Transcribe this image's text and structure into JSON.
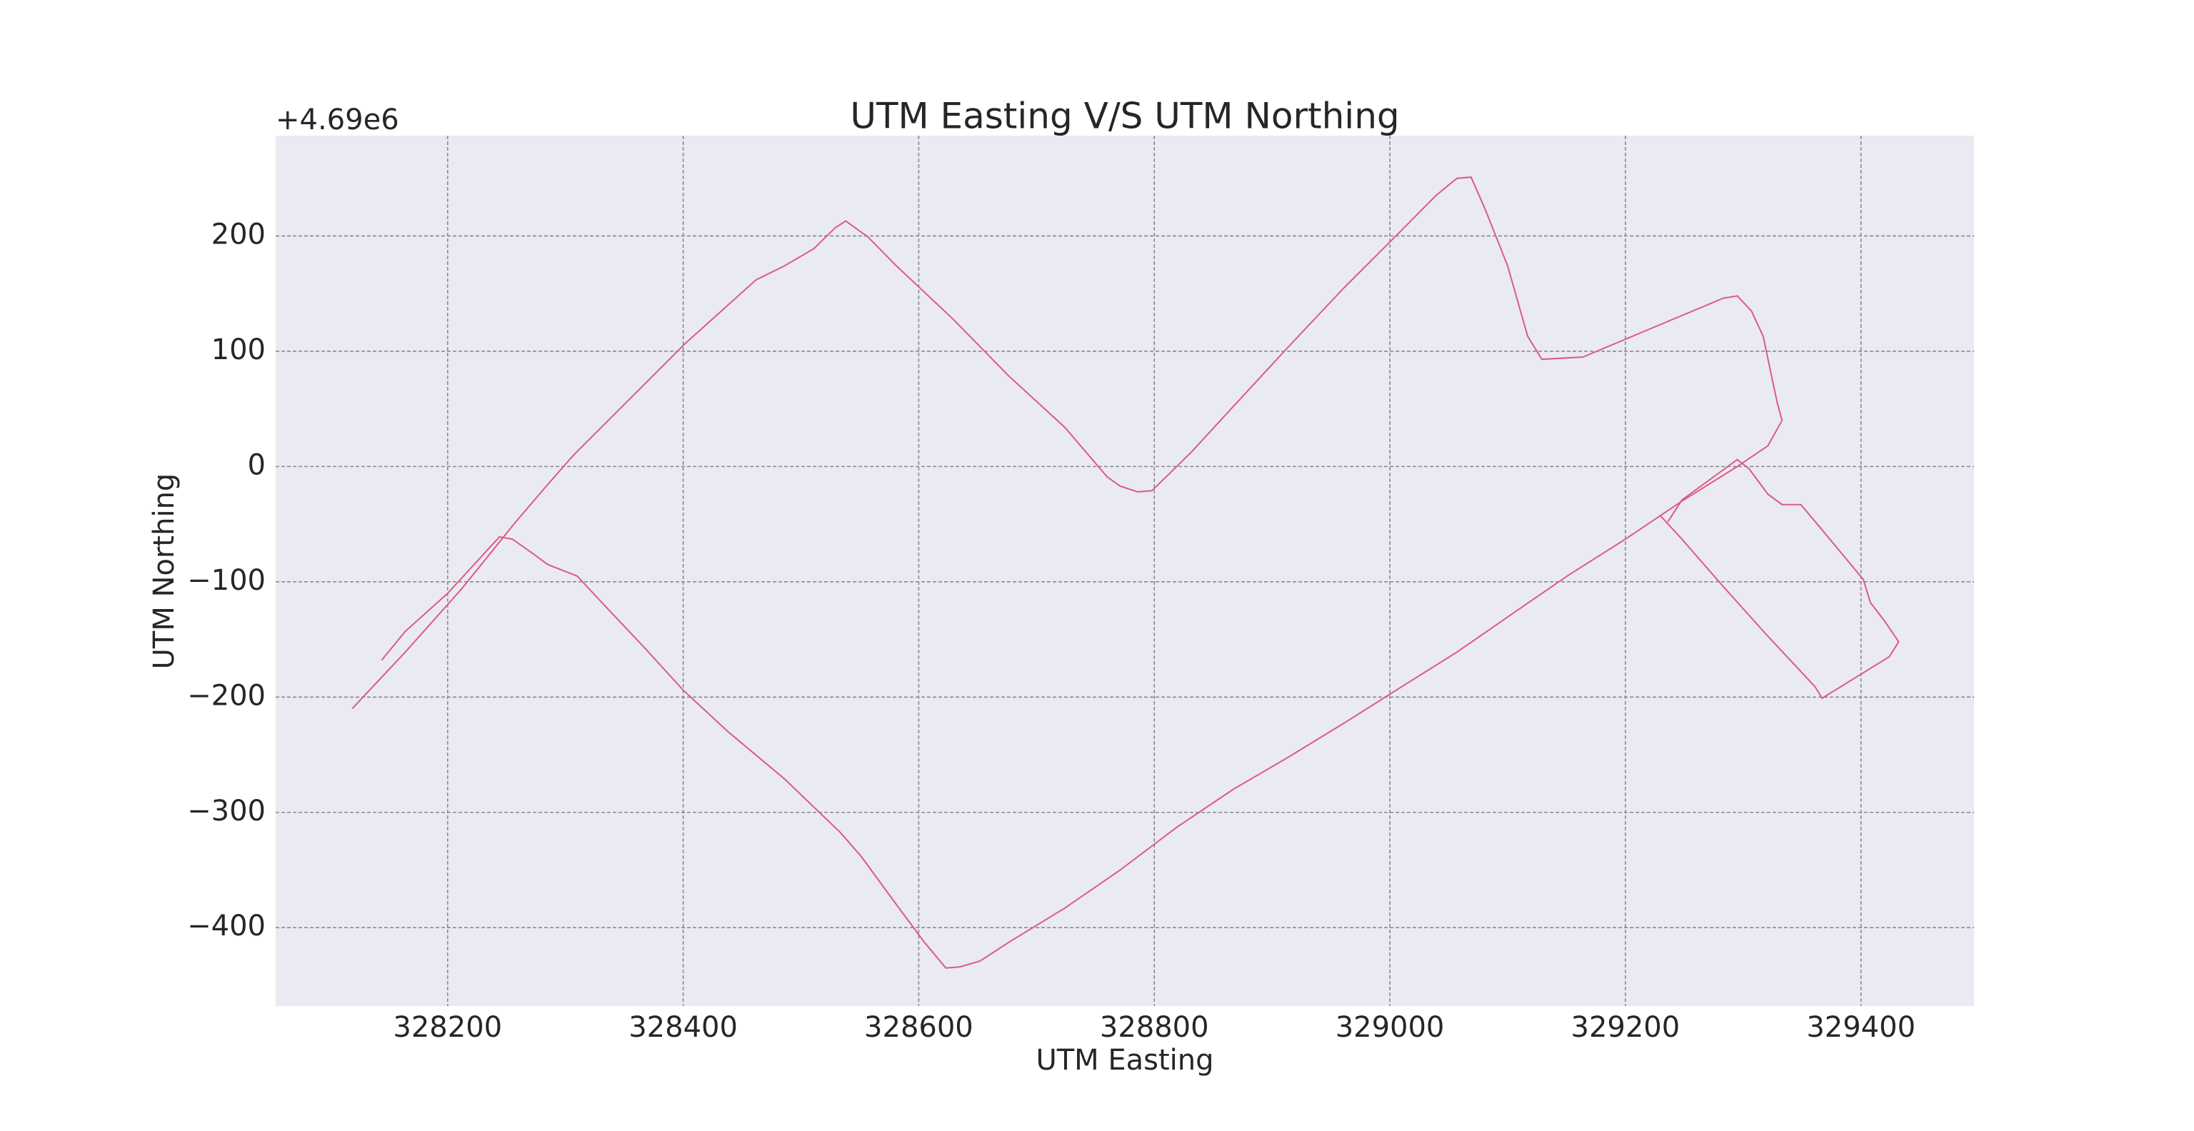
{
  "chart_data": {
    "type": "line",
    "title": "UTM Easting V/S UTM Northing",
    "x_label": "UTM Easting",
    "y_label": "UTM Northing",
    "y_offset_text": "+4.69e6",
    "color": "#dc5a86",
    "grid": true,
    "xlim": [
      328054,
      329496
    ],
    "ylim": [
      -468,
      287
    ],
    "xticks": [
      328200,
      328400,
      328600,
      328800,
      329000,
      329200,
      329400
    ],
    "yticks": [
      {
        "value": -400,
        "label": "−400"
      },
      {
        "value": -300,
        "label": "−300"
      },
      {
        "value": -200,
        "label": "−200"
      },
      {
        "value": -100,
        "label": "−100"
      },
      0,
      100,
      200
    ],
    "x": [
      328144,
      328164,
      328200,
      328244,
      328255,
      328273,
      328285,
      328310,
      328331,
      328367,
      328400,
      328438,
      328486,
      328533,
      328551,
      328581,
      328605,
      328623,
      328635,
      328652,
      328676,
      328724,
      328771,
      328819,
      328867,
      328914,
      328962,
      329010,
      329057,
      329105,
      329152,
      329200,
      329248,
      329295,
      329321,
      329333,
      329329,
      329325,
      329317,
      329307,
      329295,
      329283,
      329164,
      329129,
      329117,
      329100,
      329081,
      329069,
      329057,
      329039,
      329010,
      328962,
      328914,
      328867,
      328831,
      328798,
      328786,
      328771,
      328760,
      328724,
      328676,
      328629,
      328581,
      328557,
      328538,
      328529,
      328511,
      328486,
      328462,
      328438,
      328402,
      328355,
      328307,
      328283,
      328257,
      328212,
      328164,
      328119,
      null,
      329236,
      329248,
      329295,
      329305,
      329321,
      329333,
      329349,
      329367,
      329402,
      329408,
      329420,
      329432,
      329424,
      329367,
      329361,
      329319,
      329283,
      329248,
      329230
    ],
    "values": [
      -168,
      -143,
      -110,
      -61,
      -63,
      -76,
      -85,
      -95,
      -118,
      -157,
      -194,
      -230,
      -271,
      -317,
      -338,
      -380,
      -413,
      -435,
      -434,
      -429,
      -413,
      -383,
      -350,
      -313,
      -280,
      -252,
      -222,
      -191,
      -161,
      -127,
      -94,
      -63,
      -30,
      0,
      18,
      40,
      55,
      74,
      113,
      135,
      148,
      146,
      95,
      93,
      113,
      174,
      223,
      251,
      250,
      235,
      205,
      156,
      104,
      52,
      12,
      -21,
      -22,
      -17,
      -9,
      34,
      79,
      128,
      174,
      199,
      213,
      207,
      189,
      174,
      162,
      140,
      107,
      59,
      10,
      -18,
      -49,
      -106,
      -161,
      -210,
      null,
      -48,
      -29,
      6,
      -2,
      -24,
      -33,
      -33,
      -55,
      -98,
      -118,
      -134,
      -152,
      -165,
      -201,
      -191,
      -145,
      -104,
      -63,
      -43
    ]
  }
}
